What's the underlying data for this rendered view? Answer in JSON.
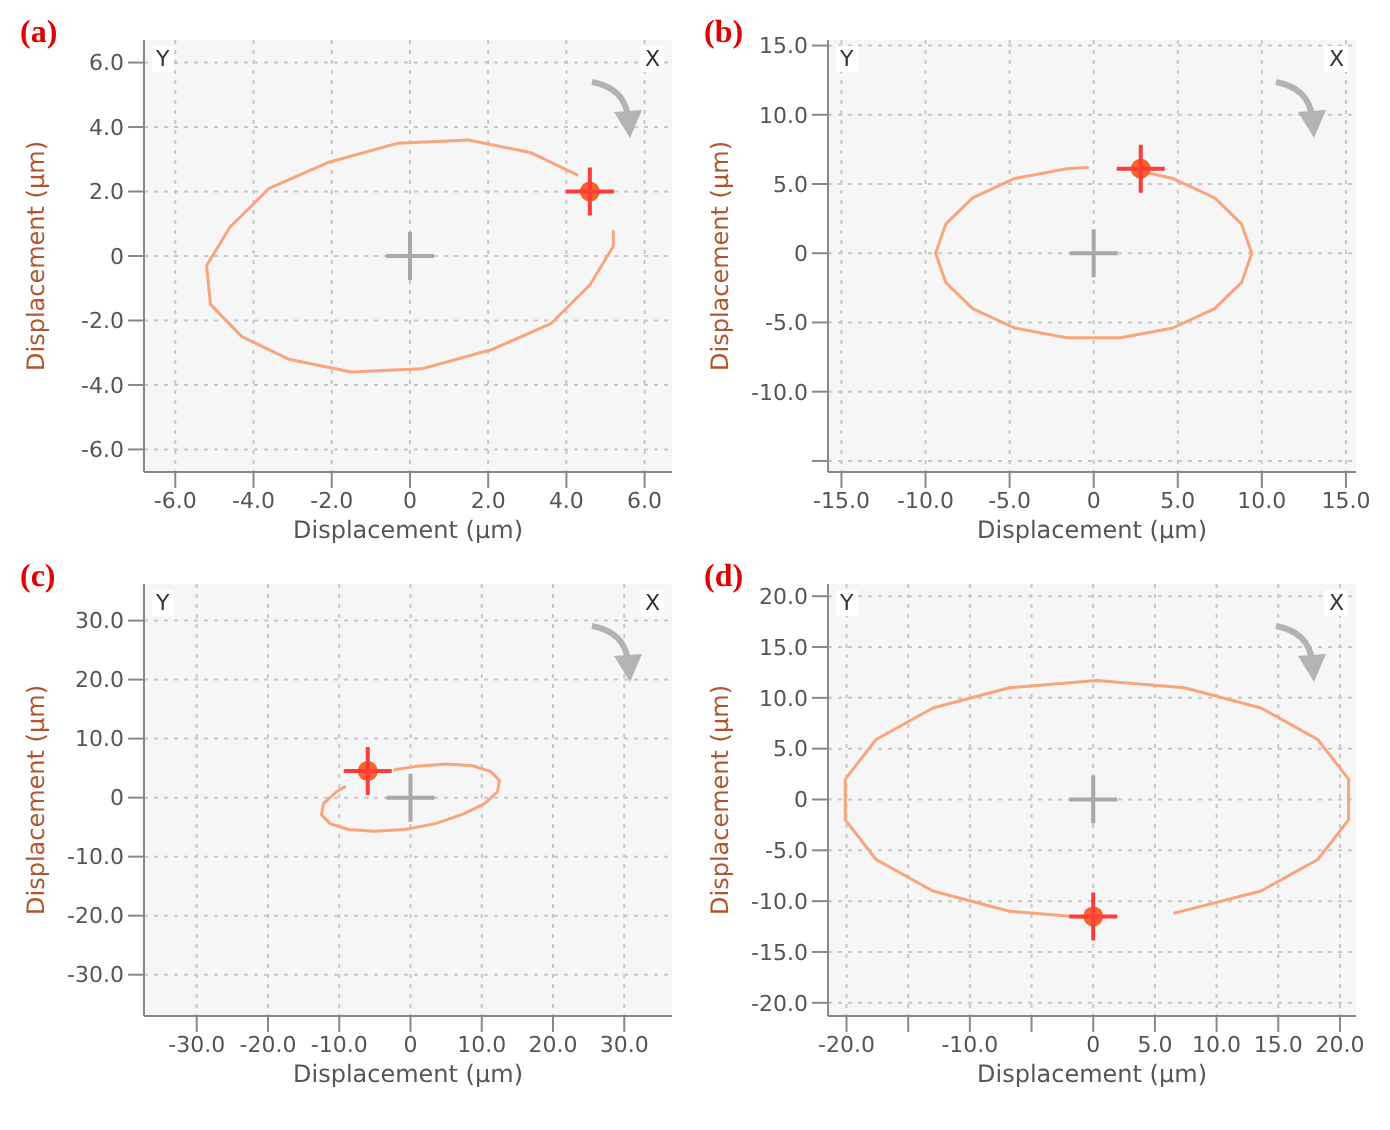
{
  "chart_data": [
    {
      "type": "scatter",
      "title": "(a)",
      "xlabel": "Displacement (μm)",
      "ylabel": "Displacement (μm)",
      "annotations": [
        "Y",
        "X"
      ],
      "grid": true,
      "xlim": [
        -6.8,
        6.7
      ],
      "ylim": [
        -6.7,
        6.7
      ],
      "xticks": [
        {
          "value": -6,
          "label": "-6.0"
        },
        {
          "value": -4,
          "label": "-4.0"
        },
        {
          "value": -2,
          "label": "-2.0"
        },
        {
          "value": 0,
          "label": "0"
        },
        {
          "value": 2,
          "label": "2.0"
        },
        {
          "value": 4,
          "label": "4.0"
        },
        {
          "value": 6,
          "label": "6.0"
        }
      ],
      "yticks": [
        {
          "value": -6,
          "label": "-6.0"
        },
        {
          "value": -4,
          "label": "-4.0"
        },
        {
          "value": -2,
          "label": "-2.0"
        },
        {
          "value": 0,
          "label": "0"
        },
        {
          "value": 2,
          "label": "2.0"
        },
        {
          "value": 4,
          "label": "4.0"
        },
        {
          "value": 6,
          "label": "6.0"
        }
      ],
      "series": [
        {
          "type": "line",
          "color": "#f7a57c",
          "marker": "none",
          "x": [
            4.3,
            3.1,
            1.5,
            -0.3,
            -2.1,
            -3.6,
            -4.6,
            -5.2,
            -5.1,
            -4.3,
            -3.1,
            -1.5,
            0.3,
            2.1,
            3.6,
            4.6,
            5.2,
            5.2
          ],
          "values": [
            2.5,
            3.2,
            3.6,
            3.5,
            2.9,
            2.1,
            0.9,
            -0.3,
            -1.5,
            -2.5,
            -3.2,
            -3.6,
            -3.5,
            -2.9,
            -2.1,
            -0.9,
            0.3,
            0.8
          ]
        },
        {
          "type": "scatter",
          "color": "#f5652a",
          "marker": "circle",
          "x": [
            4.6
          ],
          "values": [
            2.0
          ]
        },
        {
          "type": "scatter",
          "color": "#ff3b3b",
          "marker": "cross",
          "x": [
            4.6
          ],
          "values": [
            2.0
          ]
        },
        {
          "type": "scatter",
          "color": "#a8a8a8",
          "marker": "cross",
          "x": [
            0
          ],
          "values": [
            0
          ]
        }
      ]
    },
    {
      "type": "scatter",
      "title": "(b)",
      "xlabel": "Displacement (μm)",
      "ylabel": "Displacement (μm)",
      "annotations": [
        "Y",
        "X"
      ],
      "grid": true,
      "xlim": [
        -15.8,
        15.6
      ],
      "ylim": [
        -15.8,
        15.4
      ],
      "xticks": [
        {
          "value": -15,
          "label": "-15.0"
        },
        {
          "value": -10,
          "label": "-10.0"
        },
        {
          "value": -5,
          "label": "-5.0"
        },
        {
          "value": 0,
          "label": "0"
        },
        {
          "value": 5,
          "label": "5.0"
        },
        {
          "value": 10,
          "label": "10.0"
        },
        {
          "value": 15,
          "label": "15.0"
        }
      ],
      "yticks": [
        {
          "value": -15,
          "label": null
        },
        {
          "value": -10,
          "label": "-10.0"
        },
        {
          "value": -5,
          "label": "-5.0"
        },
        {
          "value": 0,
          "label": "0"
        },
        {
          "value": 5,
          "label": "5.0"
        },
        {
          "value": 10,
          "label": "10.0"
        },
        {
          "value": 15,
          "label": "15.0"
        }
      ],
      "series": [
        {
          "type": "line",
          "color": "#f7a57c",
          "marker": "none",
          "x": [
            -0.3,
            -1.6,
            -4.7,
            -7.2,
            -8.8,
            -9.4,
            -8.8,
            -7.2,
            -4.7,
            -1.6,
            1.6,
            4.7,
            7.2,
            8.8,
            9.4,
            8.8,
            7.2,
            4.7,
            2.9
          ],
          "values": [
            6.2,
            6.1,
            5.4,
            4.0,
            2.1,
            0,
            -2.1,
            -4.0,
            -5.4,
            -6.1,
            -6.1,
            -5.4,
            -4.0,
            -2.1,
            0,
            2.1,
            4.0,
            5.4,
            5.9
          ]
        },
        {
          "type": "scatter",
          "color": "#f5652a",
          "marker": "circle",
          "x": [
            2.8
          ],
          "values": [
            6.1
          ]
        },
        {
          "type": "scatter",
          "color": "#ff3b3b",
          "marker": "cross",
          "x": [
            2.8
          ],
          "values": [
            6.1
          ]
        },
        {
          "type": "scatter",
          "color": "#a8a8a8",
          "marker": "cross",
          "x": [
            0
          ],
          "values": [
            0
          ]
        }
      ]
    },
    {
      "type": "scatter",
      "title": "(c)",
      "xlabel": "Displacement (μm)",
      "ylabel": "Displacement (μm)",
      "annotations": [
        "Y",
        "X"
      ],
      "grid": true,
      "xlim": [
        -37.4,
        36.7
      ],
      "ylim": [
        -37,
        36.2
      ],
      "xticks": [
        {
          "value": -30,
          "label": "-30.0"
        },
        {
          "value": -20,
          "label": "-20.0"
        },
        {
          "value": -10,
          "label": "-10.0"
        },
        {
          "value": 0,
          "label": "0"
        },
        {
          "value": 10,
          "label": "10.0"
        },
        {
          "value": 20,
          "label": "20.0"
        },
        {
          "value": 30,
          "label": "30.0"
        }
      ],
      "yticks": [
        {
          "value": -30,
          "label": "-30.0"
        },
        {
          "value": -20,
          "label": "-20.0"
        },
        {
          "value": -10,
          "label": "-10.0"
        },
        {
          "value": 0,
          "label": "0"
        },
        {
          "value": 10,
          "label": "10.0"
        },
        {
          "value": 20,
          "label": "20.0"
        },
        {
          "value": 30,
          "label": "30.0"
        }
      ],
      "series": [
        {
          "type": "line",
          "color": "#f7a57c",
          "marker": "none",
          "x": [
            -2.4,
            0.8,
            5.1,
            8.7,
            11.3,
            12.5,
            12.2,
            10.4,
            7.4,
            3.5,
            -0.8,
            -5.1,
            -8.7,
            -11.3,
            -12.5,
            -12.2,
            -10.4,
            -9.1
          ],
          "values": [
            4.7,
            5.3,
            5.7,
            5.4,
            4.4,
            2.9,
            1.0,
            -1.0,
            -2.8,
            -4.4,
            -5.4,
            -5.7,
            -5.4,
            -4.4,
            -2.9,
            -1.0,
            1.0,
            1.9
          ]
        },
        {
          "type": "scatter",
          "color": "#f5652a",
          "marker": "circle",
          "x": [
            -6
          ],
          "values": [
            4.5
          ]
        },
        {
          "type": "scatter",
          "color": "#ff3b3b",
          "marker": "cross",
          "x": [
            -6
          ],
          "values": [
            4.5
          ]
        },
        {
          "type": "scatter",
          "color": "#a8a8a8",
          "marker": "cross",
          "x": [
            0
          ],
          "values": [
            0
          ]
        }
      ]
    },
    {
      "type": "scatter",
      "title": "(d)",
      "xlabel": "Displacement (μm)",
      "ylabel": "Displacement (μm)",
      "annotations": [
        "Y",
        "X"
      ],
      "grid": true,
      "xlim": [
        -21.5,
        21.3
      ],
      "ylim": [
        -21.3,
        21.2
      ],
      "xticks": [
        {
          "value": -20,
          "label": "-20.0"
        },
        {
          "value": -15,
          "label": null
        },
        {
          "value": -10,
          "label": "-10.0"
        },
        {
          "value": -5,
          "label": null
        },
        {
          "value": 0,
          "label": "0"
        },
        {
          "value": 5,
          "label": "5.0"
        },
        {
          "value": 10,
          "label": "10.0"
        },
        {
          "value": 15,
          "label": "15.0"
        },
        {
          "value": 20,
          "label": "20.0"
        }
      ],
      "yticks": [
        {
          "value": -20,
          "label": "-20.0"
        },
        {
          "value": -15,
          "label": "-15.0"
        },
        {
          "value": -10,
          "label": "-10.0"
        },
        {
          "value": -5,
          "label": "-5.0"
        },
        {
          "value": 0,
          "label": "0"
        },
        {
          "value": 5,
          "label": "5.0"
        },
        {
          "value": 10,
          "label": "10.0"
        },
        {
          "value": 15,
          "label": "15.0"
        },
        {
          "value": 20,
          "label": "20.0"
        }
      ],
      "series": [
        {
          "type": "line",
          "color": "#f7a57c",
          "marker": "none",
          "x": [
            0.3,
            -6.8,
            -13.0,
            -17.6,
            -20.1,
            -20.1,
            -17.6,
            -13.0,
            -6.8,
            0.3,
            7.4,
            13.6,
            18.2,
            20.7,
            20.7,
            18.2,
            13.6,
            6.5
          ],
          "values": [
            -11.7,
            -11.0,
            -9.0,
            -5.9,
            -2.0,
            2.0,
            5.9,
            9.0,
            11.0,
            11.7,
            11.0,
            9.0,
            5.9,
            2.0,
            -2.0,
            -5.9,
            -9.0,
            -11.2
          ]
        },
        {
          "type": "scatter",
          "color": "#f5652a",
          "marker": "circle",
          "x": [
            0
          ],
          "values": [
            -11.5
          ]
        },
        {
          "type": "scatter",
          "color": "#ff3b3b",
          "marker": "cross",
          "x": [
            0
          ],
          "values": [
            -11.5
          ]
        },
        {
          "type": "scatter",
          "color": "#a8a8a8",
          "marker": "cross",
          "x": [
            0
          ],
          "values": [
            0
          ]
        }
      ]
    }
  ]
}
